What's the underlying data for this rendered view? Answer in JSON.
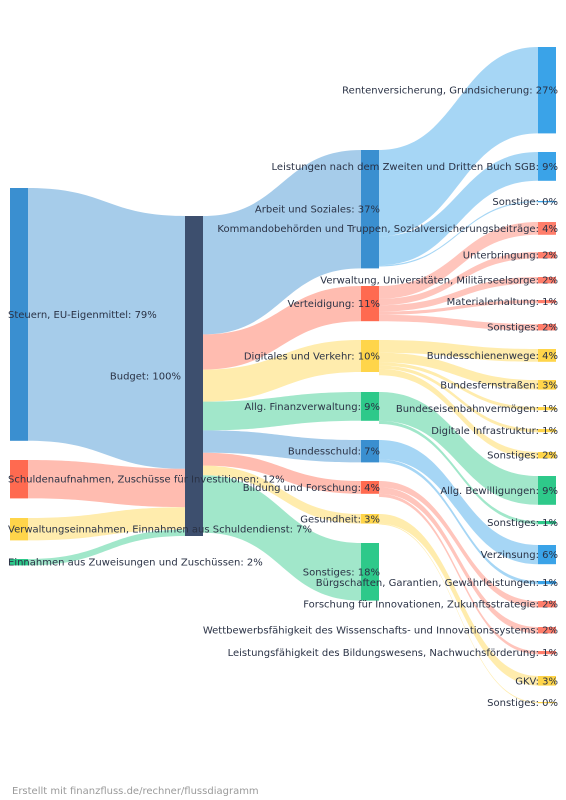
{
  "footer": "Erstellt mit finanzfluss.de/rechner/flussdiagramm",
  "chart_data": {
    "type": "sankey",
    "title": "",
    "units": "%",
    "nodes": [
      {
        "id": "steuern",
        "label": "Steuern, EU-Eigenmittel: 79%",
        "value": 79,
        "color": "#3a8fd0"
      },
      {
        "id": "schulden",
        "label": "Schuldenaufnahmen, Zuschüsse für Investitionen: 12%",
        "value": 12,
        "color": "#ff6a50"
      },
      {
        "id": "verwein",
        "label": "Verwaltungseinnahmen, Einnahmen aus Schuldendienst: 7%",
        "value": 7,
        "color": "#ffd54a"
      },
      {
        "id": "zuweis",
        "label": "Einnahmen aus Zuweisungen und Zuschüssen: 2%",
        "value": 2,
        "color": "#2ec98a"
      },
      {
        "id": "budget",
        "label": "Budget: 100%",
        "value": 100,
        "color": "#3d4f6e"
      },
      {
        "id": "arbeit",
        "label": "Arbeit und Soziales: 37%",
        "value": 37,
        "color": "#3a8fd0"
      },
      {
        "id": "verteid",
        "label": "Verteidigung: 11%",
        "value": 11,
        "color": "#ff6a50"
      },
      {
        "id": "digital",
        "label": "Digitales und Verkehr: 10%",
        "value": 10,
        "color": "#ffd54a"
      },
      {
        "id": "finanz",
        "label": "Allg. Finanzverwaltung: 9%",
        "value": 9,
        "color": "#2ec98a"
      },
      {
        "id": "bschuld",
        "label": "Bundesschuld: 7%",
        "value": 7,
        "color": "#3a8fd0"
      },
      {
        "id": "bildung",
        "label": "Bildung und Forschung: 4%",
        "value": 4,
        "color": "#ff6a50"
      },
      {
        "id": "gesund",
        "label": "Gesundheit: 3%",
        "value": 3,
        "color": "#ffd54a"
      },
      {
        "id": "sonst18",
        "label": "Sonstiges: 18%",
        "value": 18,
        "color": "#2ec98a"
      },
      {
        "id": "rente",
        "label": "Rentenversicherung, Grundsicherung: 27%",
        "value": 27,
        "color": "#3aa3e8"
      },
      {
        "id": "sgb",
        "label": "Leistungen nach dem Zweiten und Dritten Buch SGB: 9%",
        "value": 9,
        "color": "#3aa3e8"
      },
      {
        "id": "as_sonst",
        "label": "Sonstige: 0%",
        "value": 0.4,
        "color": "#3aa3e8"
      },
      {
        "id": "kommando",
        "label": "Kommandobehörden und Truppen, Sozialversicherungsbeiträge: 4%",
        "value": 4,
        "color": "#ff7e6b"
      },
      {
        "id": "unterbr",
        "label": "Unterbringung: 2%",
        "value": 2,
        "color": "#ff7e6b"
      },
      {
        "id": "vwuni",
        "label": "Verwaltung, Universitäten, Militärseelsorge: 2%",
        "value": 2,
        "color": "#ff7e6b"
      },
      {
        "id": "material",
        "label": "Materialerhaltung: 1%",
        "value": 1,
        "color": "#ff7e6b"
      },
      {
        "id": "v_sonst",
        "label": "Sonstiges: 2%",
        "value": 2,
        "color": "#ff7e6b"
      },
      {
        "id": "schiene",
        "label": "Bundesschienenwege: 4%",
        "value": 4,
        "color": "#ffd54a"
      },
      {
        "id": "strassen",
        "label": "Bundesfernstraßen: 3%",
        "value": 3,
        "color": "#ffd54a"
      },
      {
        "id": "bev",
        "label": "Bundeseisenbahnvermögen: 1%",
        "value": 1,
        "color": "#ffd54a"
      },
      {
        "id": "diginfra",
        "label": "Digitale Infrastruktur: 1%",
        "value": 1,
        "color": "#ffd54a"
      },
      {
        "id": "d_sonst",
        "label": "Sonstiges: 2%",
        "value": 2,
        "color": "#ffd54a"
      },
      {
        "id": "bewill",
        "label": "Allg. Bewilligungen: 9%",
        "value": 9,
        "color": "#2ec98a"
      },
      {
        "id": "f_sonst",
        "label": "Sonstiges: 1%",
        "value": 1,
        "color": "#2ec98a"
      },
      {
        "id": "zins",
        "label": "Verzinsung: 6%",
        "value": 6,
        "color": "#3aa3e8"
      },
      {
        "id": "buerg",
        "label": "Bürgschaften, Garantien, Gewährleistungen: 1%",
        "value": 1,
        "color": "#3aa3e8"
      },
      {
        "id": "zukunft",
        "label": "Forschung für Innovationen, Zukunftsstrategie: 2%",
        "value": 2,
        "color": "#ff7e6b"
      },
      {
        "id": "wettbew",
        "label": "Wettbewerbsfähigkeit des Wissenschafts- und Innovationssystems: 2%",
        "value": 2,
        "color": "#ff7e6b"
      },
      {
        "id": "leistung",
        "label": "Leistungsfähigkeit des Bildungswesens, Nachwuchsförderung: 1%",
        "value": 1,
        "color": "#ff7e6b"
      },
      {
        "id": "gkv",
        "label": "GKV: 3%",
        "value": 3,
        "color": "#ffd54a"
      },
      {
        "id": "g_sonst",
        "label": "Sonstiges: 0%",
        "value": 0.3,
        "color": "#ffd54a"
      }
    ],
    "links": [
      {
        "source": "steuern",
        "target": "budget",
        "value": 79
      },
      {
        "source": "schulden",
        "target": "budget",
        "value": 12
      },
      {
        "source": "verwein",
        "target": "budget",
        "value": 7
      },
      {
        "source": "zuweis",
        "target": "budget",
        "value": 2
      },
      {
        "source": "budget",
        "target": "arbeit",
        "value": 37
      },
      {
        "source": "budget",
        "target": "verteid",
        "value": 11
      },
      {
        "source": "budget",
        "target": "digital",
        "value": 10
      },
      {
        "source": "budget",
        "target": "finanz",
        "value": 9
      },
      {
        "source": "budget",
        "target": "bschuld",
        "value": 7
      },
      {
        "source": "budget",
        "target": "bildung",
        "value": 4
      },
      {
        "source": "budget",
        "target": "gesund",
        "value": 3
      },
      {
        "source": "budget",
        "target": "sonst18",
        "value": 18
      },
      {
        "source": "arbeit",
        "target": "rente",
        "value": 27
      },
      {
        "source": "arbeit",
        "target": "sgb",
        "value": 9
      },
      {
        "source": "arbeit",
        "target": "as_sonst",
        "value": 0.4
      },
      {
        "source": "verteid",
        "target": "kommando",
        "value": 4
      },
      {
        "source": "verteid",
        "target": "unterbr",
        "value": 2
      },
      {
        "source": "verteid",
        "target": "vwuni",
        "value": 2
      },
      {
        "source": "verteid",
        "target": "material",
        "value": 1
      },
      {
        "source": "verteid",
        "target": "v_sonst",
        "value": 2
      },
      {
        "source": "digital",
        "target": "schiene",
        "value": 4
      },
      {
        "source": "digital",
        "target": "strassen",
        "value": 3
      },
      {
        "source": "digital",
        "target": "bev",
        "value": 1
      },
      {
        "source": "digital",
        "target": "diginfra",
        "value": 1
      },
      {
        "source": "digital",
        "target": "d_sonst",
        "value": 2
      },
      {
        "source": "finanz",
        "target": "bewill",
        "value": 9
      },
      {
        "source": "finanz",
        "target": "f_sonst",
        "value": 1
      },
      {
        "source": "bschuld",
        "target": "zins",
        "value": 6
      },
      {
        "source": "bschuld",
        "target": "buerg",
        "value": 1
      },
      {
        "source": "bildung",
        "target": "zukunft",
        "value": 2
      },
      {
        "source": "bildung",
        "target": "wettbew",
        "value": 2
      },
      {
        "source": "bildung",
        "target": "leistung",
        "value": 1
      },
      {
        "source": "gesund",
        "target": "gkv",
        "value": 3
      },
      {
        "source": "gesund",
        "target": "g_sonst",
        "value": 0.3
      }
    ]
  }
}
